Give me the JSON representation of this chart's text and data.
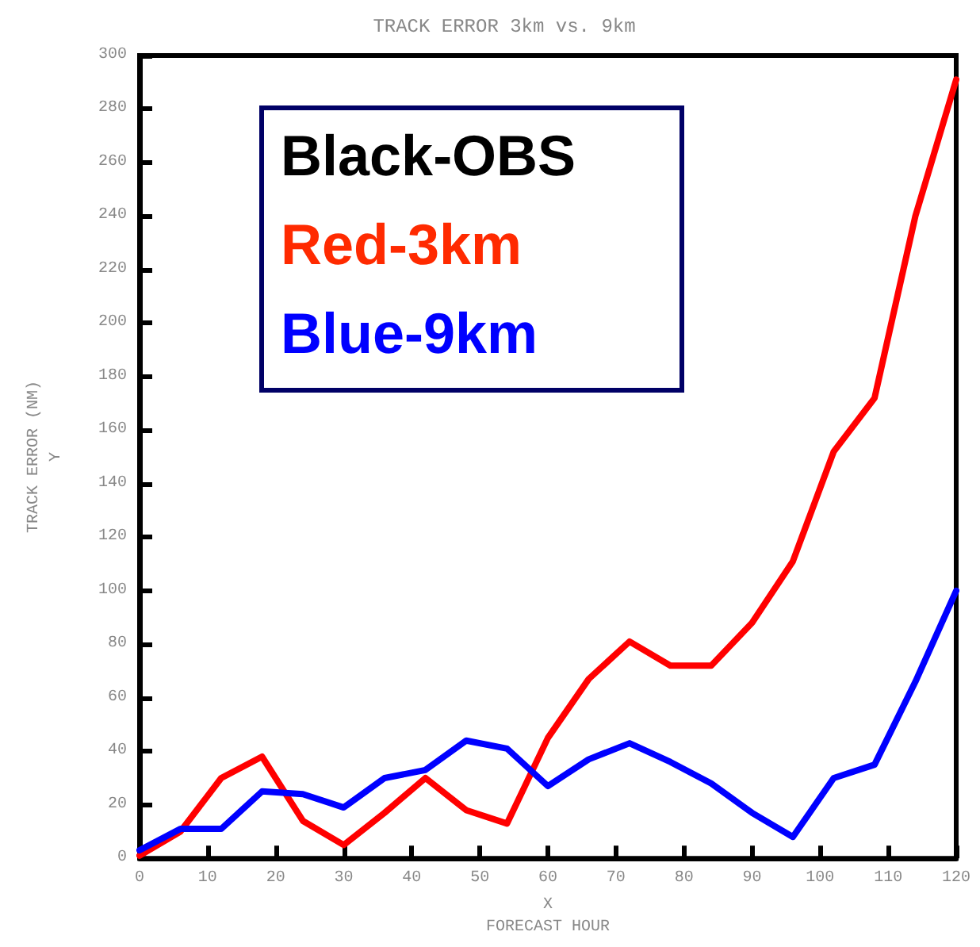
{
  "chart_data": {
    "type": "line",
    "title": "TRACK ERROR 3km vs. 9km",
    "xlabel": "X\nFORECAST HOUR",
    "ylabel": "TRACK ERROR (NM)\nY",
    "x": [
      0,
      6,
      12,
      18,
      24,
      30,
      36,
      42,
      48,
      54,
      60,
      66,
      72,
      78,
      84,
      90,
      96,
      102,
      108,
      114,
      120
    ],
    "series": [
      {
        "color": "#ff0000",
        "values": [
          1,
          10,
          30,
          38,
          14,
          5,
          17,
          30,
          18,
          13,
          45,
          67,
          81,
          72,
          72,
          88,
          111,
          152,
          172,
          240,
          291
        ]
      },
      {
        "color": "#0000ff",
        "values": [
          3,
          11,
          11,
          25,
          24,
          19,
          30,
          33,
          44,
          41,
          27,
          37,
          43,
          36,
          28,
          17,
          8,
          30,
          35,
          66,
          100
        ]
      }
    ],
    "xlim": [
      0,
      120
    ],
    "xticks": [
      0,
      10,
      20,
      30,
      40,
      50,
      60,
      70,
      80,
      90,
      100,
      110,
      120
    ],
    "ylim": [
      0,
      300
    ],
    "yticks": [
      0,
      20,
      40,
      60,
      80,
      100,
      120,
      140,
      160,
      180,
      200,
      220,
      240,
      260,
      280,
      300
    ],
    "annotations": [
      "Black-OBS",
      "Red-3km",
      "Blue-9km"
    ],
    "grid": false,
    "marker": "none",
    "line_style": "solid"
  }
}
